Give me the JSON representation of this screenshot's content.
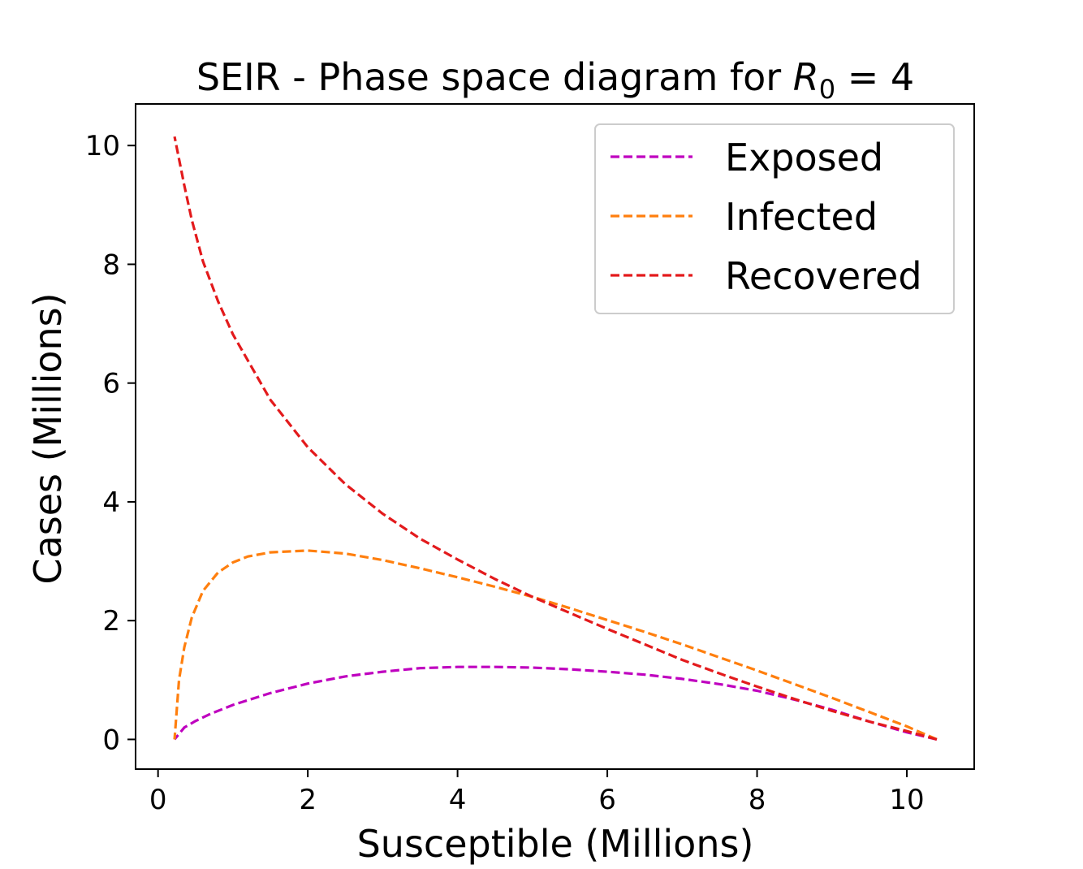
{
  "chart_data": {
    "type": "line",
    "title_main": "SEIR - Phase space diagram for ",
    "title_var": "R",
    "title_sub": "0",
    "title_end": " = 4",
    "xlabel": "Susceptible (Millions)",
    "ylabel": "Cases (Millions)",
    "xlim": [
      -0.3,
      10.9
    ],
    "ylim": [
      -0.5,
      10.7
    ],
    "xticks": [
      0,
      2,
      4,
      6,
      8,
      10
    ],
    "yticks": [
      0,
      2,
      4,
      6,
      8,
      10
    ],
    "xtick_labels": [
      "0",
      "2",
      "4",
      "6",
      "8",
      "10"
    ],
    "ytick_labels": [
      "0",
      "2",
      "4",
      "6",
      "8",
      "10"
    ],
    "grid": false,
    "legend_position": "top-right",
    "line_style": "dashed",
    "series": [
      {
        "name": "Exposed",
        "color": "#bf00bf",
        "x": [
          10.4,
          10.0,
          9.5,
          9.0,
          8.5,
          8.0,
          7.5,
          7.0,
          6.5,
          6.0,
          5.5,
          5.0,
          4.5,
          4.2,
          4.0,
          3.5,
          3.0,
          2.5,
          2.0,
          1.5,
          1.0,
          0.7,
          0.5,
          0.35,
          0.22
        ],
        "y": [
          0.0,
          0.12,
          0.3,
          0.5,
          0.67,
          0.82,
          0.93,
          1.02,
          1.09,
          1.14,
          1.18,
          1.21,
          1.22,
          1.22,
          1.22,
          1.2,
          1.14,
          1.06,
          0.94,
          0.78,
          0.58,
          0.43,
          0.31,
          0.2,
          0.0
        ]
      },
      {
        "name": "Infected",
        "color": "#ff7f0e",
        "x": [
          10.4,
          10.0,
          9.5,
          9.0,
          8.5,
          8.0,
          7.5,
          7.0,
          6.5,
          6.0,
          5.5,
          5.0,
          4.5,
          4.0,
          3.5,
          3.0,
          2.5,
          2.0,
          1.5,
          1.2,
          1.0,
          0.8,
          0.6,
          0.45,
          0.35,
          0.28,
          0.22
        ],
        "y": [
          0.0,
          0.22,
          0.46,
          0.7,
          0.93,
          1.16,
          1.38,
          1.6,
          1.81,
          2.01,
          2.21,
          2.4,
          2.57,
          2.73,
          2.88,
          3.02,
          3.13,
          3.18,
          3.15,
          3.08,
          2.98,
          2.81,
          2.5,
          2.05,
          1.55,
          1.0,
          0.0
        ]
      },
      {
        "name": "Recovered",
        "color": "#e31a1c",
        "x": [
          10.4,
          10.0,
          9.5,
          9.0,
          8.5,
          8.0,
          7.5,
          7.0,
          6.5,
          6.0,
          5.5,
          5.0,
          4.5,
          4.0,
          3.5,
          3.0,
          2.5,
          2.0,
          1.5,
          1.0,
          0.8,
          0.6,
          0.45,
          0.35,
          0.22
        ],
        "y": [
          0.0,
          0.14,
          0.3,
          0.48,
          0.68,
          0.89,
          1.11,
          1.34,
          1.6,
          1.86,
          2.13,
          2.4,
          2.7,
          3.03,
          3.38,
          3.8,
          4.3,
          4.92,
          5.72,
          6.82,
          7.38,
          8.05,
          8.75,
          9.33,
          10.15
        ]
      }
    ]
  }
}
